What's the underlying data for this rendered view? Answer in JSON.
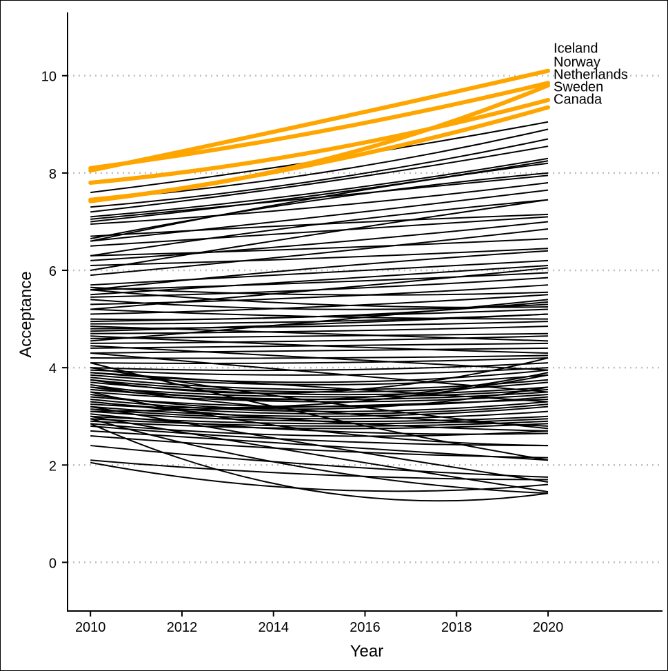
{
  "chart_data": {
    "type": "line",
    "title": "",
    "xlabel": "Year",
    "ylabel": "Acceptance",
    "xlim": [
      2009.5,
      2022.5
    ],
    "ylim": [
      -1,
      11.3
    ],
    "x_ticks": [
      "2010",
      "2012",
      "2014",
      "2016",
      "2018",
      "2020"
    ],
    "y_ticks": [
      "0",
      "2",
      "4",
      "6",
      "8",
      "10"
    ],
    "grid": "horizontal dotted",
    "colors": {
      "highlight": "#FFA500",
      "other": "#000000",
      "grid": "#BEBEBE"
    },
    "highlighted_series": [
      {
        "name": "Iceland",
        "x": [
          2010,
          2015,
          2020
        ],
        "y": [
          8.05,
          9.05,
          10.1
        ]
      },
      {
        "name": "Norway",
        "x": [
          2010,
          2015,
          2020
        ],
        "y": [
          8.1,
          8.85,
          9.85
        ]
      },
      {
        "name": "Netherlands",
        "x": [
          2010,
          2015,
          2020
        ],
        "y": [
          7.45,
          8.25,
          9.8
        ]
      },
      {
        "name": "Sweden",
        "x": [
          2010,
          2015,
          2020
        ],
        "y": [
          7.8,
          8.45,
          9.5
        ]
      },
      {
        "name": "Canada",
        "x": [
          2010,
          2015,
          2020
        ],
        "y": [
          7.42,
          8.2,
          9.35
        ]
      }
    ],
    "other_series_x": [
      2010,
      2015,
      2020
    ],
    "other_series": [
      [
        7.6,
        8.25,
        9.05
      ],
      [
        7.45,
        8.0,
        8.9
      ],
      [
        7.3,
        7.85,
        8.7
      ],
      [
        7.2,
        7.8,
        8.55
      ],
      [
        7.1,
        7.6,
        8.3
      ],
      [
        7.0,
        7.55,
        8.25
      ],
      [
        6.6,
        7.5,
        8.2
      ],
      [
        6.65,
        7.45,
        8.0
      ],
      [
        7.05,
        7.5,
        7.95
      ],
      [
        6.95,
        7.3,
        7.8
      ],
      [
        6.6,
        7.1,
        7.65
      ],
      [
        6.3,
        6.95,
        7.45
      ],
      [
        6.0,
        6.75,
        7.45
      ],
      [
        6.7,
        6.95,
        7.15
      ],
      [
        6.5,
        6.8,
        7.1
      ],
      [
        6.2,
        6.55,
        7.0
      ],
      [
        5.9,
        6.35,
        6.85
      ],
      [
        6.3,
        6.45,
        6.65
      ],
      [
        6.1,
        6.25,
        6.45
      ],
      [
        5.6,
        6.05,
        6.4
      ],
      [
        5.7,
        5.95,
        6.2
      ],
      [
        5.5,
        5.8,
        6.1
      ],
      [
        5.2,
        5.6,
        6.05
      ],
      [
        5.6,
        5.75,
        5.95
      ],
      [
        5.45,
        5.6,
        5.85
      ],
      [
        5.3,
        5.45,
        5.7
      ],
      [
        5.1,
        5.25,
        5.5
      ],
      [
        5.0,
        5.05,
        5.35
      ],
      [
        4.95,
        5.05,
        5.2
      ],
      [
        4.9,
        4.95,
        5.1
      ],
      [
        5.2,
        5.05,
        5.0
      ],
      [
        4.8,
        4.85,
        4.95
      ],
      [
        4.7,
        4.75,
        4.85
      ],
      [
        4.6,
        4.65,
        4.7
      ],
      [
        4.5,
        4.55,
        4.65
      ],
      [
        4.85,
        4.7,
        4.55
      ],
      [
        4.4,
        4.45,
        4.5
      ],
      [
        4.3,
        4.35,
        4.4
      ],
      [
        4.65,
        4.45,
        4.3
      ],
      [
        4.2,
        4.2,
        4.25
      ],
      [
        4.1,
        4.1,
        4.2
      ],
      [
        4.0,
        3.95,
        4.1
      ],
      [
        3.95,
        3.85,
        4.0
      ],
      [
        3.9,
        3.7,
        3.95
      ],
      [
        3.85,
        3.65,
        3.85
      ],
      [
        3.8,
        3.55,
        3.75
      ],
      [
        3.75,
        3.5,
        3.7
      ],
      [
        3.7,
        3.45,
        3.6
      ],
      [
        3.6,
        3.4,
        3.55
      ],
      [
        3.55,
        3.35,
        3.5
      ],
      [
        3.5,
        3.3,
        3.45
      ],
      [
        3.4,
        3.2,
        3.4
      ],
      [
        3.35,
        3.1,
        3.3
      ],
      [
        3.3,
        3.05,
        3.25
      ],
      [
        3.2,
        3.0,
        3.2
      ],
      [
        3.15,
        2.95,
        3.1
      ],
      [
        3.1,
        2.9,
        3.0
      ],
      [
        3.0,
        2.85,
        2.95
      ],
      [
        2.95,
        2.8,
        2.9
      ],
      [
        2.9,
        2.75,
        2.85
      ],
      [
        3.6,
        3.1,
        2.8
      ],
      [
        3.3,
        2.9,
        2.7
      ],
      [
        3.05,
        2.7,
        2.65
      ],
      [
        2.85,
        2.6,
        2.7
      ],
      [
        4.0,
        3.3,
        2.75
      ],
      [
        3.45,
        3.15,
        3.6
      ],
      [
        3.25,
        3.25,
        3.85
      ],
      [
        3.65,
        3.35,
        3.9
      ],
      [
        3.75,
        3.5,
        4.2
      ],
      [
        2.8,
        2.5,
        2.4
      ],
      [
        2.6,
        2.3,
        2.15
      ],
      [
        2.7,
        2.4,
        2.1
      ],
      [
        2.4,
        2.0,
        1.75
      ],
      [
        2.1,
        1.8,
        1.7
      ],
      [
        2.05,
        1.5,
        1.6
      ],
      [
        3.2,
        2.4,
        1.65
      ],
      [
        3.0,
        2.2,
        1.45
      ],
      [
        2.95,
        1.9,
        1.42
      ],
      [
        2.85,
        1.45,
        1.42
      ],
      [
        4.1,
        3.0,
        2.1
      ],
      [
        3.5,
        2.7,
        2.4
      ],
      [
        3.9,
        3.6,
        3.3
      ],
      [
        4.3,
        3.9,
        3.5
      ],
      [
        4.45,
        4.2,
        3.95
      ],
      [
        5.6,
        5.3,
        5.25
      ],
      [
        5.4,
        5.2,
        5.3
      ],
      [
        5.65,
        5.5,
        5.55
      ],
      [
        4.75,
        4.9,
        5.1
      ],
      [
        4.55,
        4.95,
        5.4
      ],
      [
        3.1,
        3.2,
        3.35
      ]
    ]
  }
}
